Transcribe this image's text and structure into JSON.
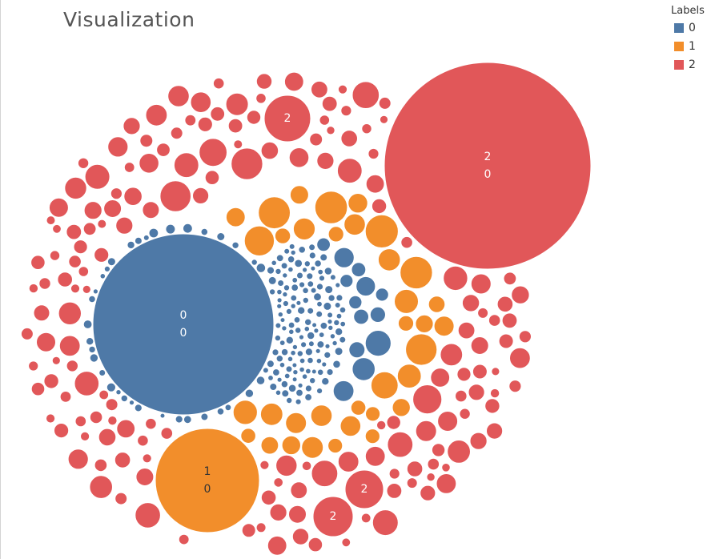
{
  "title": "Visualization",
  "legend": {
    "title": "Labels",
    "items": [
      {
        "label": "0",
        "color": "#4e79a7"
      },
      {
        "label": "1",
        "color": "#f28e2b"
      },
      {
        "label": "2",
        "color": "#e15759"
      }
    ]
  },
  "chart_data": {
    "type": "packed-bubble",
    "color_field": "Labels",
    "categories": [
      "0",
      "1",
      "2"
    ],
    "colors": {
      "0": "#4e79a7",
      "1": "#f28e2b",
      "2": "#e15759"
    },
    "labeled_bubbles": [
      {
        "label": "0",
        "lines": [
          "0",
          "0"
        ]
      },
      {
        "label": "1",
        "lines": [
          "1",
          "0"
        ]
      },
      {
        "label": "2",
        "lines": [
          "2",
          "0"
        ]
      },
      {
        "label": "2",
        "lines": [
          "2"
        ]
      },
      {
        "label": "2",
        "lines": [
          "2"
        ]
      },
      {
        "label": "2",
        "lines": [
          "2"
        ]
      }
    ]
  }
}
